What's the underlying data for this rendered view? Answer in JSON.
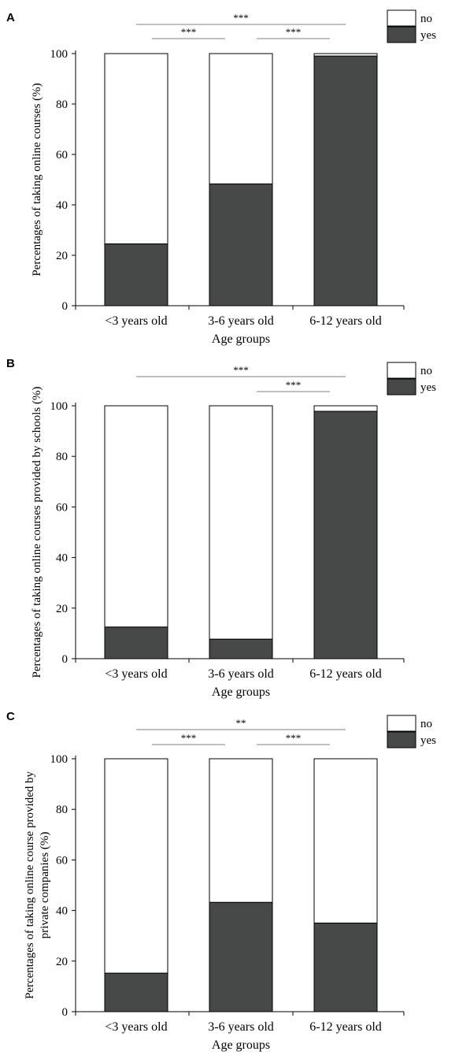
{
  "colors": {
    "yes": "#474949",
    "no": "#ffffff",
    "stroke": "#000000",
    "bracket": "#808080"
  },
  "chart_data": [
    {
      "type": "bar",
      "stacked": true,
      "panel": "A",
      "categories": [
        "<3 years old",
        "3-6 years old",
        "6-12 years old"
      ],
      "series": [
        {
          "name": "yes",
          "values": [
            24.5,
            48.3,
            99.0
          ]
        },
        {
          "name": "no",
          "values": [
            75.5,
            51.7,
            1.0
          ]
        }
      ],
      "xlabel": "Age groups",
      "ylabel": [
        "Percentages of taking online courses (%)"
      ],
      "ylim": [
        0,
        100
      ],
      "yticks": [
        "0",
        "20",
        "40",
        "60",
        "80",
        "100"
      ],
      "legend": [
        "no",
        "yes"
      ],
      "legend_position": "top-right",
      "significance": [
        {
          "from": 0,
          "to": 2,
          "label": "***"
        },
        {
          "from": 0,
          "to": 1,
          "label": "***"
        },
        {
          "from": 1,
          "to": 2,
          "label": "***"
        }
      ]
    },
    {
      "type": "bar",
      "stacked": true,
      "panel": "B",
      "categories": [
        "<3 years old",
        "3-6 years old",
        "6-12 years old"
      ],
      "series": [
        {
          "name": "yes",
          "values": [
            12.5,
            7.7,
            97.8
          ]
        },
        {
          "name": "no",
          "values": [
            87.5,
            92.3,
            2.2
          ]
        }
      ],
      "xlabel": "Age groups",
      "ylabel": [
        "Percentages of taking online courses provided by schools (%)"
      ],
      "ylim": [
        0,
        100
      ],
      "yticks": [
        "0",
        "20",
        "40",
        "60",
        "80",
        "100"
      ],
      "legend": [
        "no",
        "yes"
      ],
      "legend_position": "top-right",
      "significance": [
        {
          "from": 0,
          "to": 2,
          "label": "***"
        },
        {
          "from": 1,
          "to": 2,
          "label": "***"
        }
      ]
    },
    {
      "type": "bar",
      "stacked": true,
      "panel": "C",
      "categories": [
        "<3 years old",
        "3-6 years old",
        "6-12 years old"
      ],
      "series": [
        {
          "name": "yes",
          "values": [
            15.2,
            43.2,
            35.0
          ]
        },
        {
          "name": "no",
          "values": [
            84.8,
            56.8,
            65.0
          ]
        }
      ],
      "xlabel": "Age groups",
      "ylabel": [
        "Percentages of taking online course provided by",
        "private companies (%)"
      ],
      "ylim": [
        0,
        100
      ],
      "yticks": [
        "0",
        "20",
        "40",
        "60",
        "80",
        "100"
      ],
      "legend": [
        "no",
        "yes"
      ],
      "legend_position": "top-right",
      "significance": [
        {
          "from": 0,
          "to": 2,
          "label": "**"
        },
        {
          "from": 0,
          "to": 1,
          "label": "***"
        },
        {
          "from": 1,
          "to": 2,
          "label": "***"
        }
      ]
    }
  ]
}
